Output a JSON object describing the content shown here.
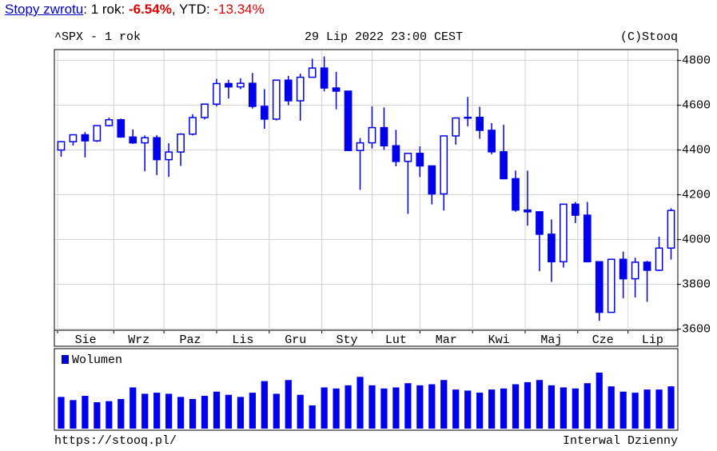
{
  "returns": {
    "link": "Stopy zwrotu",
    "period_label": ": 1 rok: ",
    "period_value": "-6.54%",
    "ytd_label": ", YTD: ",
    "ytd_value": "-13.34%"
  },
  "chart_data": {
    "type": "candlestick",
    "title": "^SPX - 1 rok",
    "subtitle": "29 Lip 2022 23:00 CEST",
    "credit": "(C)Stooq",
    "source": "https://stooq.pl/",
    "interval": "Interwal Dzienny",
    "color": "#0000ee",
    "grid": true,
    "open": [
      4400,
      4437,
      4468,
      4441,
      4509,
      4535,
      4458,
      4432,
      4455,
      4357,
      4391,
      4471,
      4545,
      4605,
      4697,
      4682,
      4698,
      4595,
      4538,
      4712,
      4620,
      4725,
      4766,
      4677,
      4663,
      4398,
      4432,
      4500,
      4419,
      4349,
      4385,
      4329,
      4204,
      4463,
      4543,
      4546,
      4488,
      4392,
      4272,
      4132,
      4124,
      4024,
      3901,
      4158,
      4109,
      3901,
      3675,
      3912,
      3825,
      3899,
      3863,
      3962
    ],
    "high": [
      4440,
      4470,
      4480,
      4510,
      4545,
      4540,
      4492,
      4465,
      4466,
      4430,
      4475,
      4560,
      4608,
      4718,
      4714,
      4720,
      4744,
      4672,
      4713,
      4731,
      4741,
      4808,
      4818,
      4749,
      4665,
      4453,
      4595,
      4590,
      4490,
      4386,
      4416,
      4331,
      4465,
      4546,
      4637,
      4593,
      4520,
      4513,
      4308,
      4308,
      4124,
      4090,
      4159,
      4168,
      4168,
      3901,
      3914,
      3946,
      3919,
      3905,
      4013,
      4140
    ],
    "low": [
      4370,
      4420,
      4367,
      4436,
      4505,
      4455,
      4427,
      4305,
      4288,
      4280,
      4329,
      4465,
      4537,
      4595,
      4630,
      4672,
      4585,
      4495,
      4532,
      4600,
      4531,
      4723,
      4662,
      4582,
      4395,
      4222,
      4407,
      4401,
      4327,
      4115,
      4279,
      4157,
      4130,
      4424,
      4506,
      4450,
      4381,
      4269,
      4124,
      4062,
      3859,
      3811,
      3875,
      4074,
      3900,
      3637,
      3675,
      3738,
      3742,
      3722,
      3859,
      3911
    ],
    "close": [
      4437,
      4468,
      4441,
      4509,
      4535,
      4458,
      4432,
      4455,
      4357,
      4391,
      4471,
      4545,
      4605,
      4697,
      4682,
      4698,
      4595,
      4538,
      4712,
      4620,
      4725,
      4766,
      4677,
      4663,
      4398,
      4432,
      4500,
      4419,
      4349,
      4385,
      4329,
      4204,
      4463,
      4543,
      4546,
      4488,
      4392,
      4272,
      4132,
      4124,
      4024,
      3901,
      4158,
      4109,
      3901,
      3675,
      3912,
      3825,
      3899,
      3863,
      3962,
      4130
    ],
    "volume_name": "Wolumen",
    "volume": [
      3.0,
      2.7,
      3.1,
      2.5,
      2.6,
      2.8,
      3.9,
      3.3,
      3.4,
      3.3,
      3.0,
      2.8,
      3.1,
      3.5,
      3.2,
      3.0,
      3.4,
      4.5,
      3.3,
      4.6,
      3.2,
      2.2,
      3.9,
      3.8,
      4.1,
      4.9,
      4.1,
      3.8,
      3.9,
      4.3,
      4.1,
      4.2,
      4.6,
      3.7,
      3.6,
      3.4,
      3.7,
      3.8,
      4.2,
      4.4,
      4.6,
      4.1,
      3.9,
      3.8,
      4.3,
      5.3,
      4.0,
      3.5,
      3.4,
      3.7,
      3.7,
      4.0
    ],
    "xlim": [
      -0.5,
      51.5
    ],
    "xticks": [
      {
        "value": -0.3,
        "label": "Sie"
      },
      {
        "value": 4.4,
        "label": "Wrz"
      },
      {
        "value": 8.6,
        "label": "Paz"
      },
      {
        "value": 13,
        "label": "Lis"
      },
      {
        "value": 17.4,
        "label": "Gru"
      },
      {
        "value": 21.8,
        "label": "Sty"
      },
      {
        "value": 26,
        "label": "Lut"
      },
      {
        "value": 30,
        "label": "Mar"
      },
      {
        "value": 34.4,
        "label": "Kwi"
      },
      {
        "value": 38.8,
        "label": "Maj"
      },
      {
        "value": 43.2,
        "label": "Cze"
      },
      {
        "value": 47.4,
        "label": "Lip"
      }
    ],
    "ylim": [
      3595,
      4845
    ],
    "yticks": [
      3600,
      3800,
      4000,
      4200,
      4400,
      4600,
      4800
    ]
  }
}
